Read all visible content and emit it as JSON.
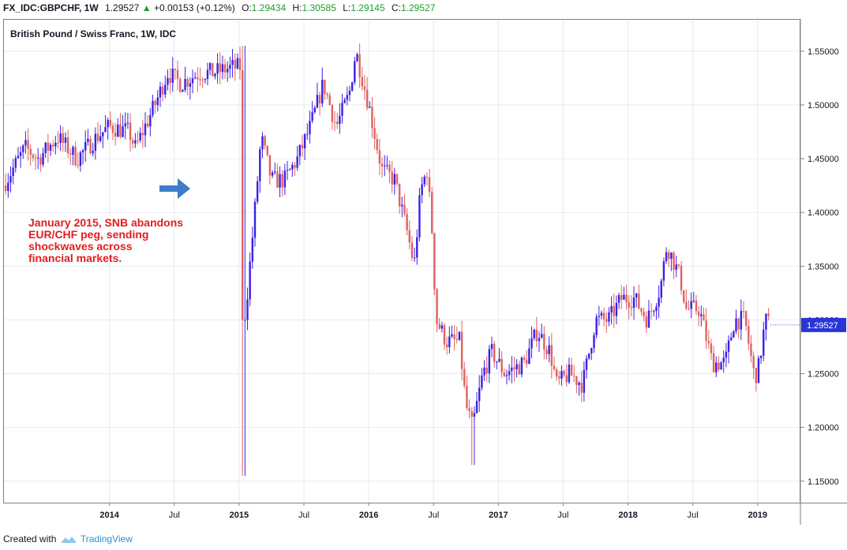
{
  "header": {
    "symbol": "FX_IDC:GBPCHF, 1W",
    "last": "1.29527",
    "change_arrow": "▲",
    "change": "+0.00153 (+0.12%)",
    "open_label": "O:",
    "open": "1.29434",
    "high_label": "H:",
    "high": "1.30585",
    "low_label": "L:",
    "low": "1.29145",
    "close_label": "C:",
    "close": "1.29527"
  },
  "footer": {
    "created_with": "Created with",
    "brand": "TradingView"
  },
  "annotation": {
    "lines": [
      "January 2015, SNB abandons",
      "EUR/CHF peg, sending",
      "shockwaves across",
      "financial markets."
    ],
    "color": "#e01e1e",
    "arrow_color": "#3d7cc9",
    "arrow_icon": "arrow-right-icon"
  },
  "chart_data": {
    "type": "candlestick",
    "title": "British Pound / Swiss Franc, 1W, IDC",
    "ylim": [
      1.13,
      1.58
    ],
    "xlim": [
      2013.18,
      2019.33
    ],
    "y_ticks": [
      "1.55000",
      "1.50000",
      "1.45000",
      "1.40000",
      "1.35000",
      "1.30000",
      "1.25000",
      "1.20000",
      "1.15000"
    ],
    "y_tick_values": [
      1.55,
      1.5,
      1.45,
      1.4,
      1.35,
      1.3,
      1.25,
      1.2,
      1.15
    ],
    "x_ticks": [
      "2014",
      "Jul",
      "2015",
      "Jul",
      "2016",
      "Jul",
      "2017",
      "Jul",
      "2018",
      "Jul",
      "2019"
    ],
    "x_tick_values": [
      2014.0,
      2014.5,
      2015.0,
      2015.5,
      2016.0,
      2016.5,
      2017.0,
      2017.5,
      2018.0,
      2018.5,
      2019.0
    ],
    "last_price_label": "1.29527",
    "last_price": 1.29527,
    "grid": true,
    "colors": {
      "up": "#3b1fe6",
      "down": "#e06260",
      "last_price": "#2a34d6",
      "grid": "#e6ebf0"
    },
    "anchors": [
      [
        2013.18,
        1.425
      ],
      [
        2013.35,
        1.46
      ],
      [
        2013.45,
        1.45
      ],
      [
        2013.6,
        1.47
      ],
      [
        2013.75,
        1.45
      ],
      [
        2013.9,
        1.47
      ],
      [
        2014.0,
        1.48
      ],
      [
        2014.15,
        1.475
      ],
      [
        2014.2,
        1.46
      ],
      [
        2014.35,
        1.5
      ],
      [
        2014.45,
        1.53
      ],
      [
        2014.55,
        1.52
      ],
      [
        2014.7,
        1.53
      ],
      [
        2014.8,
        1.53
      ],
      [
        2014.95,
        1.535
      ],
      [
        2015.01,
        1.535
      ],
      [
        2015.04,
        1.3
      ],
      [
        2015.06,
        1.32
      ],
      [
        2015.12,
        1.4
      ],
      [
        2015.17,
        1.47
      ],
      [
        2015.25,
        1.43
      ],
      [
        2015.35,
        1.43
      ],
      [
        2015.45,
        1.45
      ],
      [
        2015.55,
        1.48
      ],
      [
        2015.65,
        1.52
      ],
      [
        2015.75,
        1.48
      ],
      [
        2015.85,
        1.51
      ],
      [
        2015.9,
        1.55
      ],
      [
        2016.0,
        1.5
      ],
      [
        2016.1,
        1.44
      ],
      [
        2016.2,
        1.43
      ],
      [
        2016.3,
        1.38
      ],
      [
        2016.35,
        1.35
      ],
      [
        2016.4,
        1.42
      ],
      [
        2016.45,
        1.44
      ],
      [
        2016.49,
        1.38
      ],
      [
        2016.52,
        1.3
      ],
      [
        2016.6,
        1.28
      ],
      [
        2016.7,
        1.28
      ],
      [
        2016.75,
        1.22
      ],
      [
        2016.8,
        1.2
      ],
      [
        2016.88,
        1.25
      ],
      [
        2016.95,
        1.27
      ],
      [
        2017.05,
        1.25
      ],
      [
        2017.2,
        1.26
      ],
      [
        2017.3,
        1.29
      ],
      [
        2017.4,
        1.27
      ],
      [
        2017.45,
        1.24
      ],
      [
        2017.55,
        1.25
      ],
      [
        2017.65,
        1.24
      ],
      [
        2017.75,
        1.3
      ],
      [
        2017.85,
        1.3
      ],
      [
        2017.95,
        1.32
      ],
      [
        2018.05,
        1.32
      ],
      [
        2018.15,
        1.3
      ],
      [
        2018.25,
        1.33
      ],
      [
        2018.3,
        1.37
      ],
      [
        2018.4,
        1.34
      ],
      [
        2018.45,
        1.31
      ],
      [
        2018.55,
        1.31
      ],
      [
        2018.65,
        1.26
      ],
      [
        2018.75,
        1.26
      ],
      [
        2018.82,
        1.3
      ],
      [
        2018.9,
        1.3
      ],
      [
        2018.97,
        1.25
      ],
      [
        2019.0,
        1.25
      ],
      [
        2019.06,
        1.3
      ],
      [
        2019.1,
        1.295
      ]
    ]
  }
}
